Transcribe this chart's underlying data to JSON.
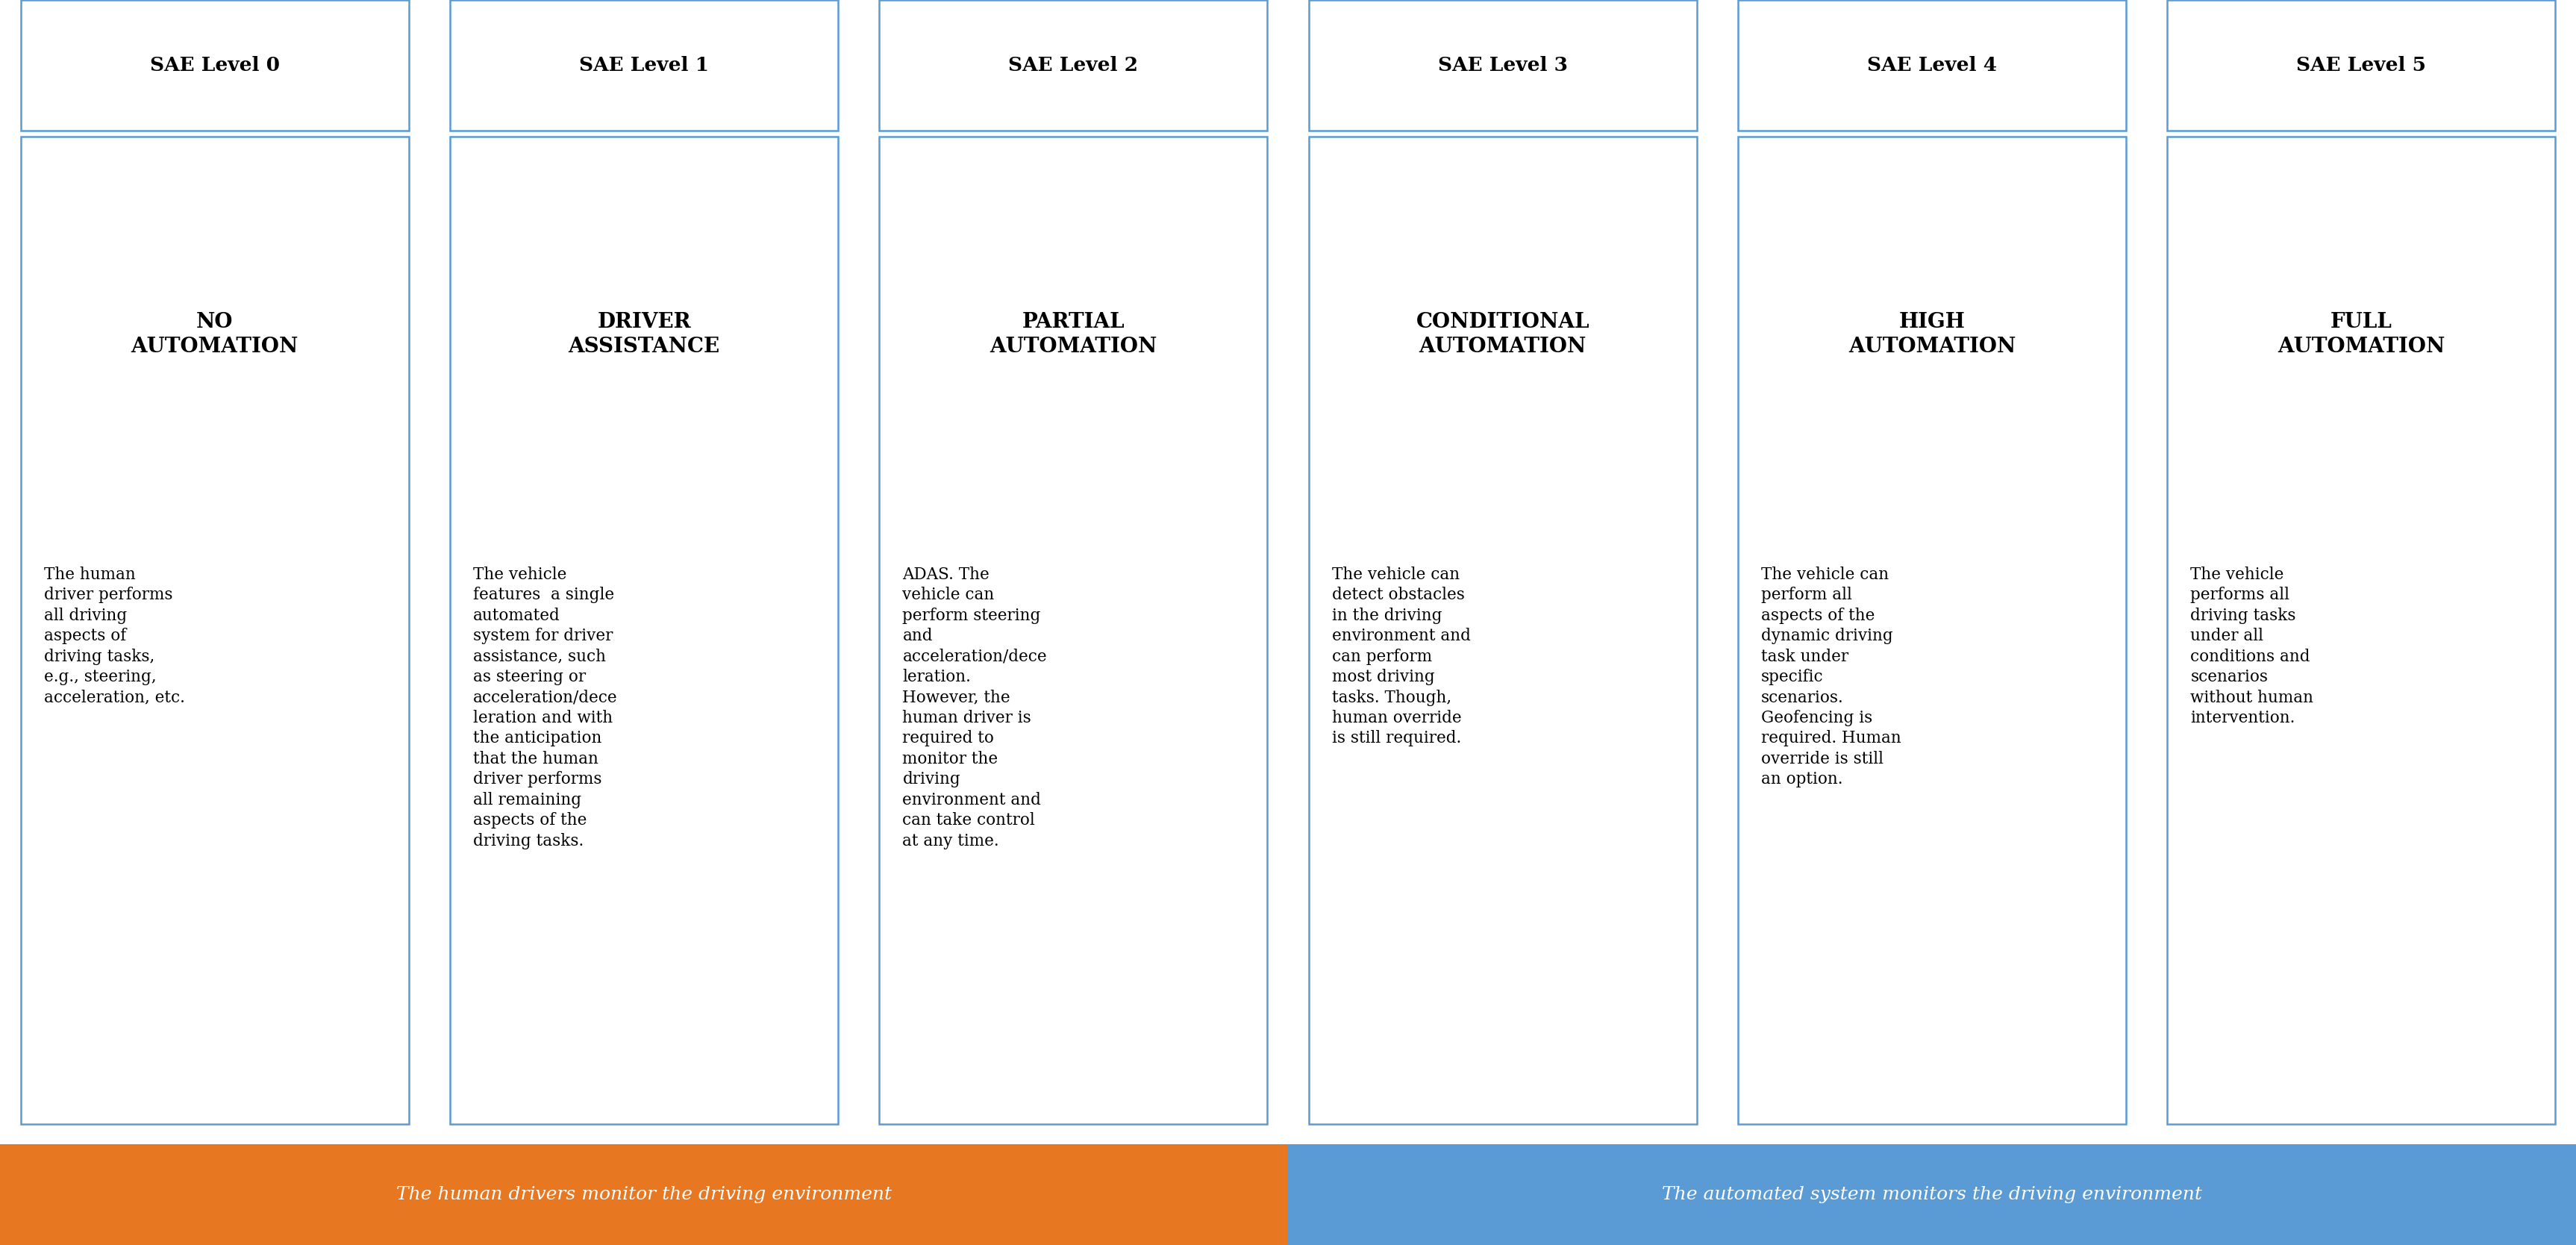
{
  "columns": [
    {
      "header": "SAE Level 0",
      "title": "NO\nAUTOMATION",
      "body": "The human\ndriver performs\nall driving\naspects of\ndriving tasks,\ne.g., steering,\nacceleration, etc."
    },
    {
      "header": "SAE Level 1",
      "title": "DRIVER\nASSISTANCE",
      "body": "The vehicle\nfeatures  a single\nautomated\nsystem for driver\nassistance, such\nas steering or\nacceleration/dece\nleration and with\nthe anticipation\nthat the human\ndriver performs\nall remaining\naspects of the\ndriving tasks."
    },
    {
      "header": "SAE Level 2",
      "title": "PARTIAL\nAUTOMATION",
      "body": "ADAS. The\nvehicle can\nperform steering\nand\nacceleration/dece\nleration.\nHowever, the\nhuman driver is\nrequired to\nmonitor the\ndriving\nenvironment and\ncan take control\nat any time."
    },
    {
      "header": "SAE Level 3",
      "title": "CONDITIONAL\nAUTOMATION",
      "body": "The vehicle can\ndetect obstacles\nin the driving\nenvironment and\ncan perform\nmost driving\ntasks. Though,\nhuman override\nis still required."
    },
    {
      "header": "SAE Level 4",
      "title": "HIGH\nAUTOMATION",
      "body": "The vehicle can\nperform all\naspects of the\ndynamic driving\ntask under\nspecific\nscenarios.\nGeofencing is\nrequired. Human\noverride is still\nan option."
    },
    {
      "header": "SAE Level 5",
      "title": "FULL\nAUTOMATION",
      "body": "The vehicle\nperforms all\ndriving tasks\nunder all\nconditions and\nscenarios\nwithout human\nintervention."
    }
  ],
  "footer_left": "The human drivers monitor the driving environment",
  "footer_right": "The automated system monitors the driving environment",
  "footer_left_color": "#E87722",
  "footer_right_color": "#5B9BD5",
  "border_color": "#5B9BD5",
  "text_color": "#000000",
  "footer_split": 3,
  "num_cols": 6,
  "fig_width": 34.52,
  "fig_height": 16.68
}
